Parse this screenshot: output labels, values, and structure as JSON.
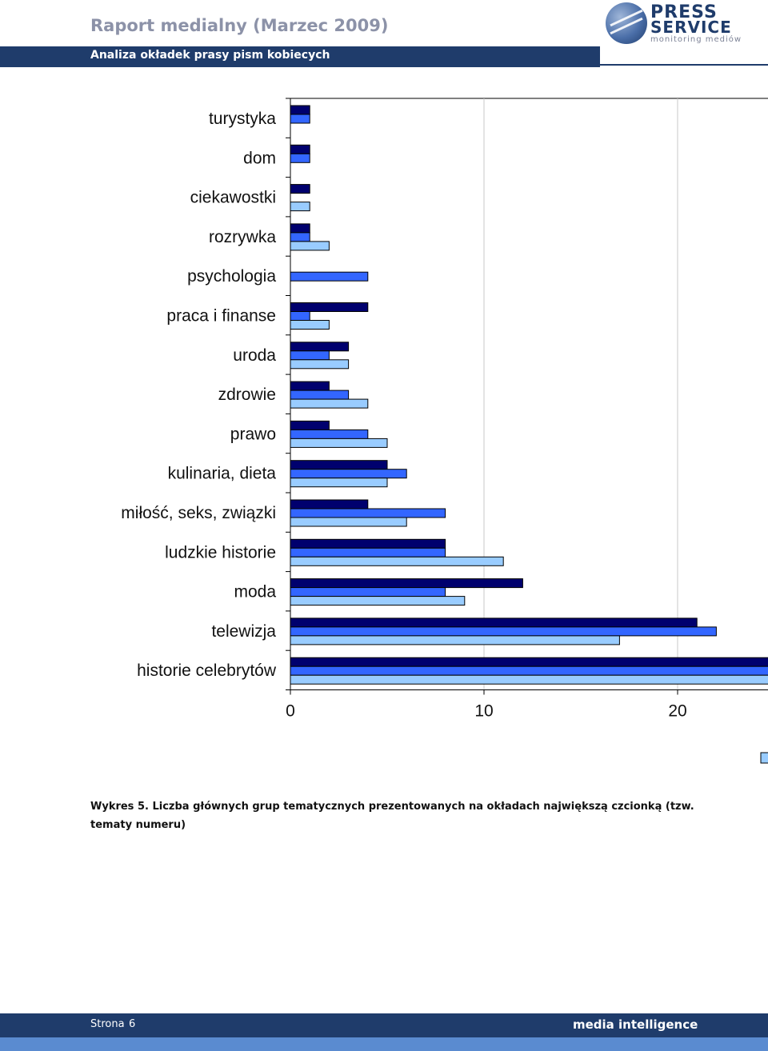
{
  "header": {
    "title": "Raport medialny (Marzec 2009)",
    "subtitle": "Analiza okładek prasy pism kobiecych"
  },
  "logo": {
    "line1": "PRESS",
    "line2": "SERVICE",
    "tagline": "monitoring mediów"
  },
  "chart_data": {
    "type": "bar",
    "orientation": "horizontal",
    "categories": [
      "turystyka",
      "dom",
      "ciekawostki",
      "rozrywka",
      "psychologia",
      "praca i finanse",
      "uroda",
      "zdrowie",
      "prawo",
      "kulinaria, dieta",
      "miłość, seks, związki",
      "ludzkie historie",
      "moda",
      "telewizja",
      "historie celebrytów"
    ],
    "series": [
      {
        "values": [
          1,
          1,
          1,
          1,
          0,
          4,
          3,
          2,
          2,
          5,
          4,
          8,
          12,
          21,
          25
        ]
      },
      {
        "values": [
          1,
          1,
          0,
          1,
          4,
          1,
          2,
          3,
          4,
          6,
          8,
          8,
          8,
          22,
          25
        ]
      },
      {
        "values": [
          0,
          0,
          1,
          2,
          0,
          2,
          3,
          4,
          5,
          5,
          6,
          11,
          9,
          17,
          25
        ]
      }
    ],
    "colors": [
      "#00006e",
      "#3366ff",
      "#99ccff"
    ],
    "xticks": [
      "0",
      "10",
      "20"
    ],
    "xlim": [
      0,
      25
    ],
    "grid": true
  },
  "caption": "Wykres 5. Liczba głównych grup tematycznych prezentowanych na okładach największą czcionką (tzw. tematy numeru)",
  "footer": {
    "page_label": "Strona",
    "page_number": "6",
    "brand": "media intelligence"
  }
}
